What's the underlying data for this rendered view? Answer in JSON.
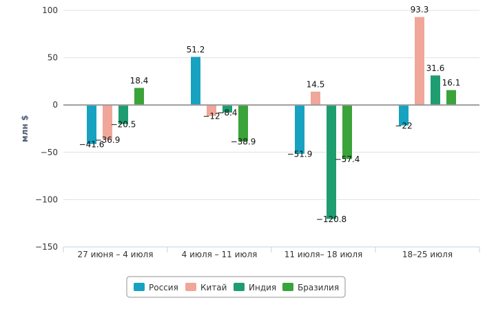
{
  "chart_data": {
    "type": "bar",
    "ylabel": "млн $",
    "ylim": [
      -150,
      100
    ],
    "yticks": [
      100,
      50,
      0,
      -50,
      -100,
      -150
    ],
    "categories": [
      "27 июня – 4 июля",
      "4 июля – 11 июля",
      "11 июля– 18 июля",
      "18–25 июля"
    ],
    "series": [
      {
        "name": "Россия",
        "color": "#17a2c0",
        "values": [
          -41.6,
          51.2,
          -51.9,
          -22
        ]
      },
      {
        "name": "Китай",
        "color": "#f0a699",
        "values": [
          -36.9,
          -12,
          14.5,
          93.3
        ]
      },
      {
        "name": "Индия",
        "color": "#1e9d71",
        "values": [
          -20.5,
          -8.4,
          -120.8,
          31.6
        ]
      },
      {
        "name": "Бразилия",
        "color": "#3aa33a",
        "values": [
          18.4,
          -38.9,
          -57.4,
          16.1
        ]
      }
    ],
    "data_labels": [
      [
        "−41.6",
        "51.2",
        "−51.9",
        "−22"
      ],
      [
        "−36.9",
        "−12",
        "14.5",
        "93.3"
      ],
      [
        "−20.5",
        "−8.4",
        "−120.8",
        "31.6"
      ],
      [
        "18.4",
        "−38.9",
        "−57.4",
        "16.1"
      ]
    ],
    "legend_position": "bottom-center",
    "grid": true
  }
}
